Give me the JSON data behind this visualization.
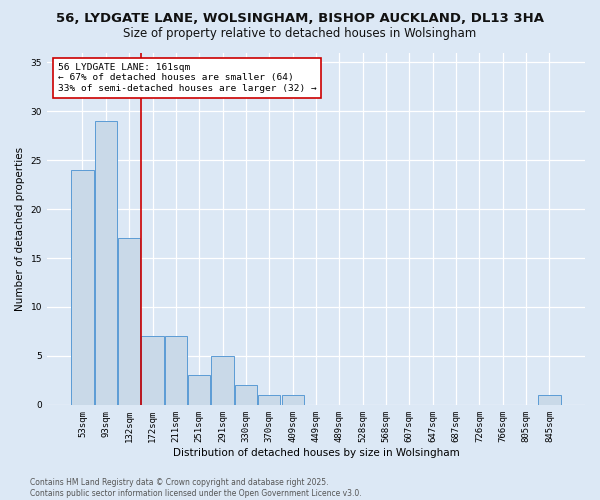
{
  "title": "56, LYDGATE LANE, WOLSINGHAM, BISHOP AUCKLAND, DL13 3HA",
  "subtitle": "Size of property relative to detached houses in Wolsingham",
  "xlabel": "Distribution of detached houses by size in Wolsingham",
  "ylabel": "Number of detached properties",
  "footnote1": "Contains HM Land Registry data © Crown copyright and database right 2025.",
  "footnote2": "Contains public sector information licensed under the Open Government Licence v3.0.",
  "bin_labels": [
    "53sqm",
    "93sqm",
    "132sqm",
    "172sqm",
    "211sqm",
    "251sqm",
    "291sqm",
    "330sqm",
    "370sqm",
    "409sqm",
    "449sqm",
    "489sqm",
    "528sqm",
    "568sqm",
    "607sqm",
    "647sqm",
    "687sqm",
    "726sqm",
    "766sqm",
    "805sqm",
    "845sqm"
  ],
  "bar_values": [
    24,
    29,
    17,
    7,
    7,
    3,
    5,
    2,
    1,
    1,
    0,
    0,
    0,
    0,
    0,
    0,
    0,
    0,
    0,
    0,
    1
  ],
  "bar_color": "#c9d9e8",
  "bar_edgecolor": "#5b9bd5",
  "vline_color": "#cc0000",
  "vline_pos": 2.5,
  "annotation_text": "56 LYDGATE LANE: 161sqm\n← 67% of detached houses are smaller (64)\n33% of semi-detached houses are larger (32) →",
  "annotation_box_color": "#ffffff",
  "annotation_border_color": "#cc0000",
  "ylim": [
    0,
    36
  ],
  "yticks": [
    0,
    5,
    10,
    15,
    20,
    25,
    30,
    35
  ],
  "background_color": "#dce8f5",
  "axes_background": "#dce8f5",
  "grid_color": "#ffffff",
  "title_fontsize": 9.5,
  "subtitle_fontsize": 8.5,
  "axis_label_fontsize": 7.5,
  "tick_fontsize": 6.5,
  "annotation_fontsize": 6.8,
  "footnote_fontsize": 5.5
}
